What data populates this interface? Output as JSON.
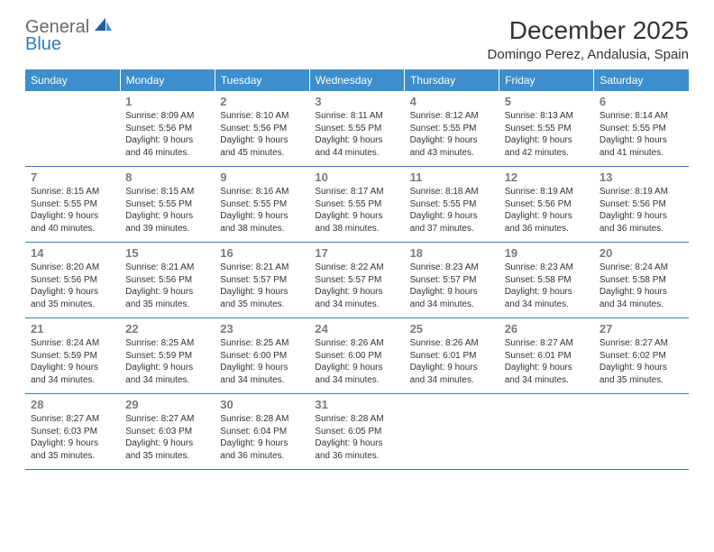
{
  "logo": {
    "part1": "General",
    "part2": "Blue"
  },
  "title": "December 2025",
  "location": "Domingo Perez, Andalusia, Spain",
  "colors": {
    "header_bg": "#3c8ecc",
    "header_text": "#ffffff",
    "rule": "#2f7bbf",
    "daynum": "#7a7a7a",
    "body_text": "#333333",
    "logo_gray": "#6a6a6a",
    "logo_blue": "#2f7bbf"
  },
  "weekdays": [
    "Sunday",
    "Monday",
    "Tuesday",
    "Wednesday",
    "Thursday",
    "Friday",
    "Saturday"
  ],
  "weeks": [
    [
      null,
      {
        "n": "1",
        "sr": "Sunrise: 8:09 AM",
        "ss": "Sunset: 5:56 PM",
        "d1": "Daylight: 9 hours",
        "d2": "and 46 minutes."
      },
      {
        "n": "2",
        "sr": "Sunrise: 8:10 AM",
        "ss": "Sunset: 5:56 PM",
        "d1": "Daylight: 9 hours",
        "d2": "and 45 minutes."
      },
      {
        "n": "3",
        "sr": "Sunrise: 8:11 AM",
        "ss": "Sunset: 5:55 PM",
        "d1": "Daylight: 9 hours",
        "d2": "and 44 minutes."
      },
      {
        "n": "4",
        "sr": "Sunrise: 8:12 AM",
        "ss": "Sunset: 5:55 PM",
        "d1": "Daylight: 9 hours",
        "d2": "and 43 minutes."
      },
      {
        "n": "5",
        "sr": "Sunrise: 8:13 AM",
        "ss": "Sunset: 5:55 PM",
        "d1": "Daylight: 9 hours",
        "d2": "and 42 minutes."
      },
      {
        "n": "6",
        "sr": "Sunrise: 8:14 AM",
        "ss": "Sunset: 5:55 PM",
        "d1": "Daylight: 9 hours",
        "d2": "and 41 minutes."
      }
    ],
    [
      {
        "n": "7",
        "sr": "Sunrise: 8:15 AM",
        "ss": "Sunset: 5:55 PM",
        "d1": "Daylight: 9 hours",
        "d2": "and 40 minutes."
      },
      {
        "n": "8",
        "sr": "Sunrise: 8:15 AM",
        "ss": "Sunset: 5:55 PM",
        "d1": "Daylight: 9 hours",
        "d2": "and 39 minutes."
      },
      {
        "n": "9",
        "sr": "Sunrise: 8:16 AM",
        "ss": "Sunset: 5:55 PM",
        "d1": "Daylight: 9 hours",
        "d2": "and 38 minutes."
      },
      {
        "n": "10",
        "sr": "Sunrise: 8:17 AM",
        "ss": "Sunset: 5:55 PM",
        "d1": "Daylight: 9 hours",
        "d2": "and 38 minutes."
      },
      {
        "n": "11",
        "sr": "Sunrise: 8:18 AM",
        "ss": "Sunset: 5:55 PM",
        "d1": "Daylight: 9 hours",
        "d2": "and 37 minutes."
      },
      {
        "n": "12",
        "sr": "Sunrise: 8:19 AM",
        "ss": "Sunset: 5:56 PM",
        "d1": "Daylight: 9 hours",
        "d2": "and 36 minutes."
      },
      {
        "n": "13",
        "sr": "Sunrise: 8:19 AM",
        "ss": "Sunset: 5:56 PM",
        "d1": "Daylight: 9 hours",
        "d2": "and 36 minutes."
      }
    ],
    [
      {
        "n": "14",
        "sr": "Sunrise: 8:20 AM",
        "ss": "Sunset: 5:56 PM",
        "d1": "Daylight: 9 hours",
        "d2": "and 35 minutes."
      },
      {
        "n": "15",
        "sr": "Sunrise: 8:21 AM",
        "ss": "Sunset: 5:56 PM",
        "d1": "Daylight: 9 hours",
        "d2": "and 35 minutes."
      },
      {
        "n": "16",
        "sr": "Sunrise: 8:21 AM",
        "ss": "Sunset: 5:57 PM",
        "d1": "Daylight: 9 hours",
        "d2": "and 35 minutes."
      },
      {
        "n": "17",
        "sr": "Sunrise: 8:22 AM",
        "ss": "Sunset: 5:57 PM",
        "d1": "Daylight: 9 hours",
        "d2": "and 34 minutes."
      },
      {
        "n": "18",
        "sr": "Sunrise: 8:23 AM",
        "ss": "Sunset: 5:57 PM",
        "d1": "Daylight: 9 hours",
        "d2": "and 34 minutes."
      },
      {
        "n": "19",
        "sr": "Sunrise: 8:23 AM",
        "ss": "Sunset: 5:58 PM",
        "d1": "Daylight: 9 hours",
        "d2": "and 34 minutes."
      },
      {
        "n": "20",
        "sr": "Sunrise: 8:24 AM",
        "ss": "Sunset: 5:58 PM",
        "d1": "Daylight: 9 hours",
        "d2": "and 34 minutes."
      }
    ],
    [
      {
        "n": "21",
        "sr": "Sunrise: 8:24 AM",
        "ss": "Sunset: 5:59 PM",
        "d1": "Daylight: 9 hours",
        "d2": "and 34 minutes."
      },
      {
        "n": "22",
        "sr": "Sunrise: 8:25 AM",
        "ss": "Sunset: 5:59 PM",
        "d1": "Daylight: 9 hours",
        "d2": "and 34 minutes."
      },
      {
        "n": "23",
        "sr": "Sunrise: 8:25 AM",
        "ss": "Sunset: 6:00 PM",
        "d1": "Daylight: 9 hours",
        "d2": "and 34 minutes."
      },
      {
        "n": "24",
        "sr": "Sunrise: 8:26 AM",
        "ss": "Sunset: 6:00 PM",
        "d1": "Daylight: 9 hours",
        "d2": "and 34 minutes."
      },
      {
        "n": "25",
        "sr": "Sunrise: 8:26 AM",
        "ss": "Sunset: 6:01 PM",
        "d1": "Daylight: 9 hours",
        "d2": "and 34 minutes."
      },
      {
        "n": "26",
        "sr": "Sunrise: 8:27 AM",
        "ss": "Sunset: 6:01 PM",
        "d1": "Daylight: 9 hours",
        "d2": "and 34 minutes."
      },
      {
        "n": "27",
        "sr": "Sunrise: 8:27 AM",
        "ss": "Sunset: 6:02 PM",
        "d1": "Daylight: 9 hours",
        "d2": "and 35 minutes."
      }
    ],
    [
      {
        "n": "28",
        "sr": "Sunrise: 8:27 AM",
        "ss": "Sunset: 6:03 PM",
        "d1": "Daylight: 9 hours",
        "d2": "and 35 minutes."
      },
      {
        "n": "29",
        "sr": "Sunrise: 8:27 AM",
        "ss": "Sunset: 6:03 PM",
        "d1": "Daylight: 9 hours",
        "d2": "and 35 minutes."
      },
      {
        "n": "30",
        "sr": "Sunrise: 8:28 AM",
        "ss": "Sunset: 6:04 PM",
        "d1": "Daylight: 9 hours",
        "d2": "and 36 minutes."
      },
      {
        "n": "31",
        "sr": "Sunrise: 8:28 AM",
        "ss": "Sunset: 6:05 PM",
        "d1": "Daylight: 9 hours",
        "d2": "and 36 minutes."
      },
      null,
      null,
      null
    ]
  ]
}
